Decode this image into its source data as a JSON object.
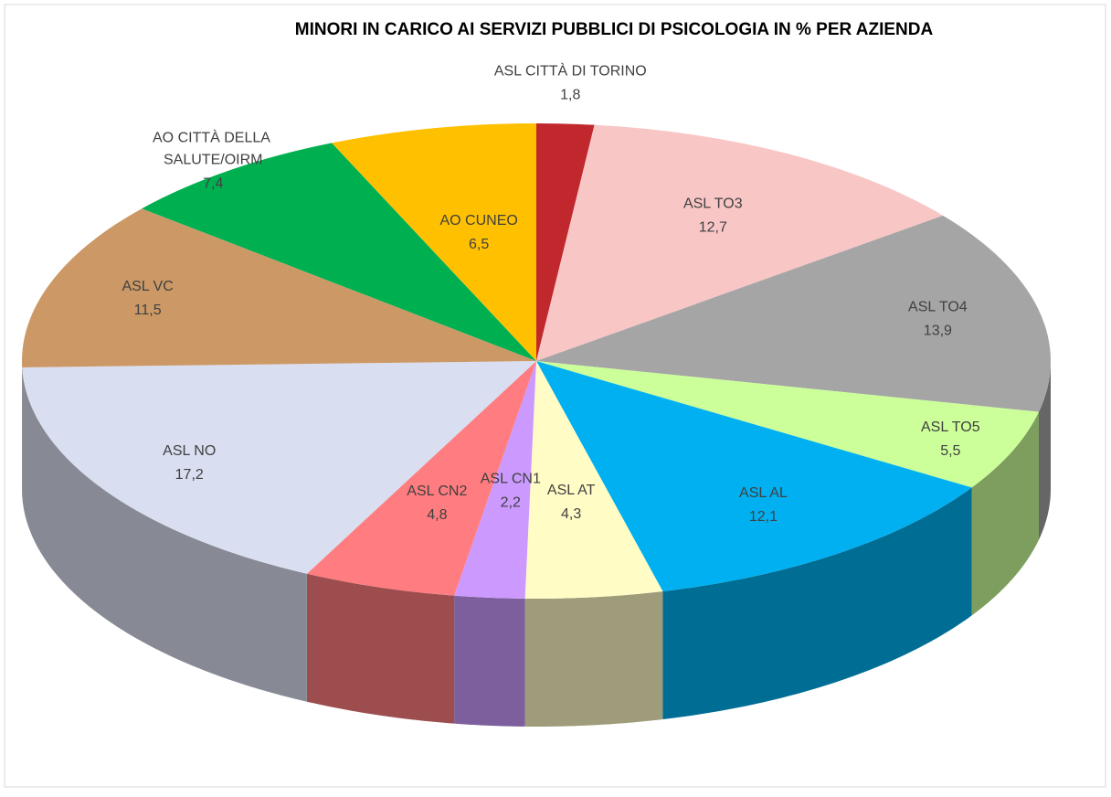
{
  "chart_data": {
    "type": "pie",
    "title": "MINORI IN CARICO AI SERVIZI PUBBLICI DI PSICOLOGIA IN % PER AZIENDA",
    "categories": [
      "ASL CITTÀ DI TORINO",
      "ASL TO3",
      "ASL TO4",
      "ASL TO5",
      "ASL AL",
      "ASL AT",
      "ASL CN1",
      "ASL CN2",
      "ASL NO",
      "ASL VC",
      "AO CITTÀ DELLA SALUTE/OIRM",
      "AO CUNEO"
    ],
    "values": [
      1.8,
      12.7,
      13.9,
      5.5,
      12.1,
      4.3,
      2.2,
      4.8,
      17.2,
      11.5,
      7.4,
      6.5
    ],
    "value_labels": [
      "1,8",
      "12,7",
      "13,9",
      "5,5",
      "12,1",
      "4,3",
      "2,2",
      "4,8",
      "17,2",
      "11,5",
      "7,4",
      "6,5"
    ],
    "colors": [
      "#c0282d",
      "#f9c6c6",
      "#a5a5a5",
      "#ccff99",
      "#00b0f0",
      "#fffcc5",
      "#cc99ff",
      "#ff7c80",
      "#d9dff0",
      "#cc9966",
      "#00b050",
      "#ffc000"
    ]
  }
}
